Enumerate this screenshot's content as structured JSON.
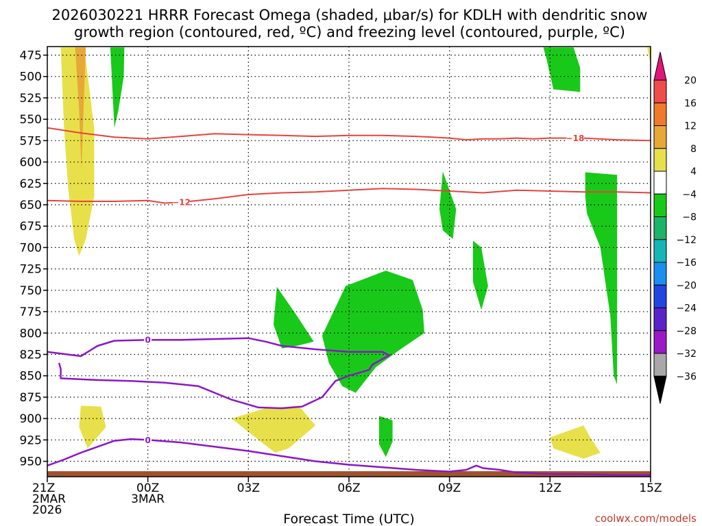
{
  "chart_data": {
    "type": "heatmap",
    "title_line1": "2026030221 HRRR Forecast Omega (shaded, μbar/s) for KDLH with dendritic snow",
    "title_line2": "growth region (contoured, red, ºC) and freezing level (contoured, purple, ºC)",
    "xlabel": "Forecast Time (UTC)",
    "credit": "coolwx.com/models",
    "x_range_hours": [
      0,
      18
    ],
    "y_range_mb": [
      465,
      968
    ],
    "y_ticks": [
      475,
      500,
      525,
      550,
      575,
      600,
      625,
      650,
      675,
      700,
      725,
      750,
      775,
      800,
      825,
      850,
      875,
      900,
      925,
      950
    ],
    "x_ticks": [
      {
        "hour": 0,
        "lines": [
          "21Z",
          "2MAR",
          "2026"
        ]
      },
      {
        "hour": 3,
        "lines": [
          "00Z",
          "3MAR"
        ]
      },
      {
        "hour": 6,
        "lines": [
          "03Z"
        ]
      },
      {
        "hour": 9,
        "lines": [
          "06Z"
        ]
      },
      {
        "hour": 12,
        "lines": [
          "09Z"
        ]
      },
      {
        "hour": 15,
        "lines": [
          "12Z"
        ]
      },
      {
        "hour": 18,
        "lines": [
          "15Z"
        ]
      }
    ],
    "colorbar": {
      "labels": [
        "20",
        "16",
        "12",
        "8",
        "4",
        "−4",
        "−8",
        "−12",
        "−16",
        "−20",
        "−24",
        "−28",
        "−32",
        "−36"
      ],
      "colors": [
        "#f04c4c",
        "#f07a2a",
        "#e8a838",
        "#e8e04a",
        "#ffffff",
        "#19c919",
        "#1cb36a",
        "#17b5b5",
        "#1a8ff0",
        "#2244e0",
        "#5a22c8",
        "#9a1ac6",
        "#a8a8a8"
      ],
      "top_color": "#e0157a",
      "bottom_color": "#000000"
    },
    "shaded_regions": [
      {
        "color": "#e8e04a",
        "points": [
          [
            0.4,
            466
          ],
          [
            1.1,
            466
          ],
          [
            1.4,
            560
          ],
          [
            1.4,
            640
          ],
          [
            1.15,
            690
          ],
          [
            0.95,
            710
          ],
          [
            0.8,
            690
          ],
          [
            0.62,
            630
          ],
          [
            0.5,
            560
          ]
        ]
      },
      {
        "color": "#e8a838",
        "points": [
          [
            0.83,
            466
          ],
          [
            1.15,
            466
          ],
          [
            1.08,
            540
          ],
          [
            1.02,
            610
          ],
          [
            0.95,
            540
          ]
        ]
      },
      {
        "color": "#19c919",
        "points": [
          [
            1.88,
            466
          ],
          [
            2.3,
            466
          ],
          [
            2.28,
            500
          ],
          [
            2.12,
            540
          ],
          [
            2.0,
            560
          ],
          [
            1.95,
            520
          ]
        ]
      },
      {
        "color": "#19c919",
        "points": [
          [
            14.8,
            466
          ],
          [
            15.7,
            466
          ],
          [
            15.9,
            490
          ],
          [
            15.9,
            518
          ],
          [
            15.1,
            515
          ],
          [
            14.9,
            480
          ]
        ]
      },
      {
        "color": "#e8e04a",
        "points": [
          [
            17.9,
            466
          ],
          [
            18.0,
            466
          ],
          [
            18.0,
            486
          ]
        ]
      },
      {
        "color": "#19c919",
        "points": [
          [
            11.8,
            611
          ],
          [
            12.2,
            655
          ],
          [
            12.1,
            690
          ],
          [
            11.8,
            680
          ],
          [
            11.7,
            655
          ]
        ]
      },
      {
        "color": "#19c919",
        "points": [
          [
            16.05,
            612
          ],
          [
            17.0,
            615
          ],
          [
            17.0,
            860
          ],
          [
            16.9,
            850
          ],
          [
            16.8,
            780
          ],
          [
            16.5,
            700
          ],
          [
            16.1,
            660
          ],
          [
            16.05,
            640
          ]
        ]
      },
      {
        "color": "#19c919",
        "points": [
          [
            12.7,
            692
          ],
          [
            12.95,
            700
          ],
          [
            13.15,
            745
          ],
          [
            12.95,
            773
          ],
          [
            12.7,
            740
          ]
        ]
      },
      {
        "color": "#19c919",
        "points": [
          [
            6.85,
            746
          ],
          [
            7.45,
            780
          ],
          [
            7.95,
            810
          ],
          [
            7.45,
            815
          ],
          [
            7.0,
            818
          ],
          [
            6.75,
            790
          ]
        ]
      },
      {
        "color": "#19c919",
        "points": [
          [
            8.2,
            803
          ],
          [
            8.9,
            745
          ],
          [
            10.1,
            727
          ],
          [
            10.9,
            738
          ],
          [
            11.2,
            773
          ],
          [
            11.25,
            800
          ],
          [
            10.5,
            820
          ],
          [
            9.8,
            840
          ],
          [
            9.2,
            870
          ],
          [
            8.8,
            862
          ],
          [
            8.4,
            835
          ]
        ]
      },
      {
        "color": "#19c919",
        "points": [
          [
            9.9,
            897
          ],
          [
            10.3,
            902
          ],
          [
            10.3,
            927
          ],
          [
            10.1,
            945
          ],
          [
            9.9,
            930
          ]
        ]
      },
      {
        "color": "#e8e04a",
        "points": [
          [
            1.0,
            885
          ],
          [
            1.6,
            886
          ],
          [
            1.75,
            910
          ],
          [
            1.2,
            935
          ],
          [
            0.95,
            910
          ]
        ]
      },
      {
        "color": "#e8e04a",
        "points": [
          [
            5.5,
            900
          ],
          [
            6.5,
            888
          ],
          [
            7.5,
            885
          ],
          [
            8.0,
            908
          ],
          [
            7.2,
            935
          ],
          [
            6.8,
            940
          ],
          [
            6.3,
            925
          ]
        ]
      },
      {
        "color": "#e8e04a",
        "points": [
          [
            15.0,
            922
          ],
          [
            16.0,
            908
          ],
          [
            16.2,
            922
          ],
          [
            16.5,
            940
          ],
          [
            16.0,
            947
          ],
          [
            15.1,
            935
          ]
        ]
      }
    ],
    "red_contours": [
      {
        "label": "−18",
        "label_hour": 15.75,
        "points": [
          [
            0,
            560
          ],
          [
            1,
            566
          ],
          [
            2,
            571
          ],
          [
            3,
            573
          ],
          [
            4,
            570
          ],
          [
            5,
            567
          ],
          [
            6,
            568
          ],
          [
            7,
            569
          ],
          [
            8,
            570
          ],
          [
            9,
            569
          ],
          [
            10,
            569
          ],
          [
            11,
            570
          ],
          [
            11.5,
            571
          ],
          [
            12,
            572
          ],
          [
            12.5,
            574
          ],
          [
            13,
            573
          ],
          [
            13.5,
            573
          ],
          [
            14,
            572
          ],
          [
            14.5,
            573
          ],
          [
            15,
            572
          ],
          [
            15.5,
            572
          ],
          [
            16,
            572
          ],
          [
            17,
            574
          ],
          [
            18,
            575
          ]
        ]
      },
      {
        "label": "−12",
        "label_hour": 4.0,
        "points": [
          [
            0,
            645
          ],
          [
            1,
            646
          ],
          [
            2,
            646
          ],
          [
            3,
            645
          ],
          [
            3.5,
            648
          ],
          [
            4,
            647
          ],
          [
            5,
            643
          ],
          [
            6,
            638
          ],
          [
            7,
            636
          ],
          [
            8,
            635
          ],
          [
            9,
            633
          ],
          [
            10,
            631
          ],
          [
            11,
            632
          ],
          [
            12,
            634
          ],
          [
            13,
            636
          ],
          [
            14,
            633
          ],
          [
            15,
            634
          ],
          [
            16,
            635
          ],
          [
            17,
            635
          ],
          [
            18,
            636
          ]
        ]
      }
    ],
    "purple_contours": [
      {
        "label": "0",
        "label_hour": 3.0,
        "points": [
          [
            0,
            822
          ],
          [
            1,
            827
          ],
          [
            1.5,
            815
          ],
          [
            2,
            809
          ],
          [
            3,
            808
          ],
          [
            4,
            808
          ],
          [
            5,
            807
          ],
          [
            6,
            806
          ],
          [
            6.5,
            810
          ],
          [
            7,
            815
          ],
          [
            8,
            819
          ],
          [
            9,
            822
          ],
          [
            10,
            822
          ],
          [
            10.2,
            826
          ],
          [
            9.7,
            837
          ],
          [
            9.6,
            843
          ],
          [
            9.0,
            850
          ],
          [
            8.6,
            856
          ],
          [
            8.2,
            875
          ],
          [
            7.6,
            886
          ],
          [
            7.0,
            888
          ],
          [
            6.3,
            887
          ],
          [
            5.5,
            878
          ],
          [
            5.0,
            870
          ],
          [
            4.5,
            862
          ],
          [
            3.5,
            858
          ],
          [
            2.5,
            856
          ],
          [
            1.5,
            855
          ],
          [
            0.4,
            853
          ],
          [
            0.4,
            842
          ],
          [
            0.35,
            835
          ]
        ]
      },
      {
        "label": "0",
        "label_hour": 3.0,
        "points": [
          [
            0,
            955
          ],
          [
            0.5,
            948
          ],
          [
            1,
            940
          ],
          [
            1.5,
            933
          ],
          [
            2,
            926
          ],
          [
            2.5,
            924
          ],
          [
            3,
            925
          ],
          [
            4,
            928
          ],
          [
            5,
            933
          ],
          [
            6,
            938
          ],
          [
            7,
            944
          ],
          [
            8,
            950
          ],
          [
            9,
            954
          ],
          [
            10,
            957
          ],
          [
            11,
            960
          ],
          [
            12,
            962
          ],
          [
            12.5,
            960
          ],
          [
            12.8,
            955
          ],
          [
            13,
            958
          ],
          [
            13.5,
            960
          ],
          [
            14,
            963
          ],
          [
            14.5,
            964
          ],
          [
            15,
            965
          ],
          [
            16,
            965
          ],
          [
            17,
            966
          ],
          [
            18,
            966
          ]
        ]
      }
    ],
    "terrain_color": "#a0522d"
  }
}
